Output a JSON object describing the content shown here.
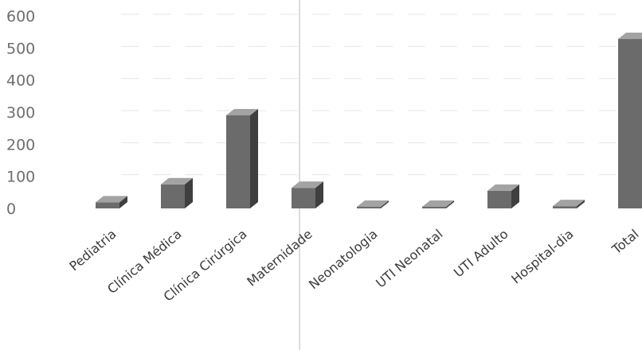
{
  "chart_data": {
    "type": "bar",
    "title": "",
    "xlabel": "",
    "ylabel": "",
    "ylim": [
      0,
      600
    ],
    "yticks": [
      0,
      100,
      200,
      300,
      400,
      500,
      600
    ],
    "grid": true,
    "legend": "none",
    "style": "3d",
    "categories": [
      "Pediatria",
      "Clínica Médica",
      "Clínica Cirúrgica",
      "Maternidade",
      "Neonatologia",
      "UTI Neonatal",
      "UTI Adulto",
      "Hospital-dia",
      "Total"
    ],
    "values": [
      19,
      75,
      290,
      64,
      2,
      4,
      55,
      7,
      528
    ],
    "colors": {
      "bar_front": "#6b6b6b",
      "bar_top": "#a3a3a3",
      "bar_side": "#3f3f3f"
    }
  }
}
